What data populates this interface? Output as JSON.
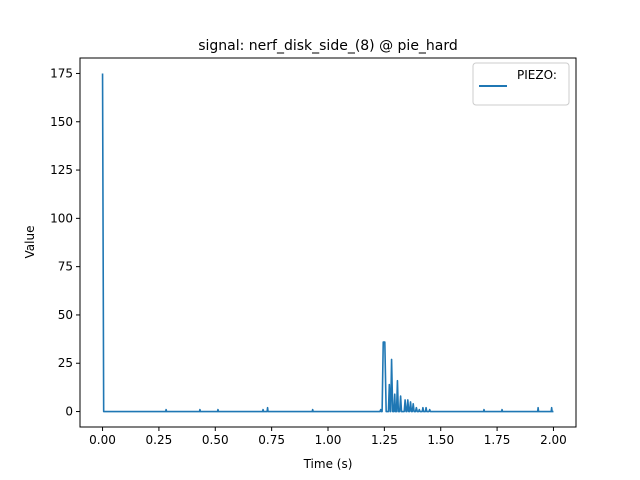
{
  "chart_data": {
    "type": "line",
    "title": "signal: nerf_disk_side_(8) @ pie_hard",
    "xlabel": "Time (s)",
    "ylabel": "Value",
    "xlim": [
      -0.1,
      2.1
    ],
    "ylim": [
      -8,
      183
    ],
    "xticks": [
      0.0,
      0.25,
      0.5,
      0.75,
      1.0,
      1.25,
      1.5,
      1.75,
      2.0
    ],
    "xtick_labels": [
      "0.00",
      "0.25",
      "0.50",
      "0.75",
      "1.00",
      "1.25",
      "1.50",
      "1.75",
      "2.00"
    ],
    "yticks": [
      0,
      25,
      50,
      75,
      100,
      125,
      150,
      175
    ],
    "ytick_labels": [
      "0",
      "25",
      "50",
      "75",
      "100",
      "125",
      "150",
      "175"
    ],
    "grid": false,
    "legend": {
      "position": "top-right",
      "entries": [
        "PIEZO:"
      ]
    },
    "series": [
      {
        "name": "PIEZO:",
        "color": "#1f77b4",
        "points": [
          [
            0.0,
            175
          ],
          [
            0.005,
            0
          ],
          [
            0.28,
            0
          ],
          [
            0.282,
            1
          ],
          [
            0.284,
            0
          ],
          [
            0.43,
            0
          ],
          [
            0.432,
            1
          ],
          [
            0.434,
            0
          ],
          [
            0.51,
            0
          ],
          [
            0.512,
            1
          ],
          [
            0.514,
            0
          ],
          [
            0.71,
            0
          ],
          [
            0.712,
            1
          ],
          [
            0.714,
            0
          ],
          [
            0.73,
            0
          ],
          [
            0.732,
            2
          ],
          [
            0.734,
            0
          ],
          [
            0.93,
            0
          ],
          [
            0.932,
            1
          ],
          [
            0.934,
            0
          ],
          [
            1.23,
            0
          ],
          [
            1.234,
            1
          ],
          [
            1.236,
            0
          ],
          [
            1.24,
            0
          ],
          [
            1.245,
            36
          ],
          [
            1.252,
            36
          ],
          [
            1.258,
            0
          ],
          [
            1.268,
            0
          ],
          [
            1.272,
            14
          ],
          [
            1.276,
            0
          ],
          [
            1.278,
            0
          ],
          [
            1.282,
            27
          ],
          [
            1.287,
            0
          ],
          [
            1.292,
            0
          ],
          [
            1.296,
            9
          ],
          [
            1.299,
            0
          ],
          [
            1.304,
            0
          ],
          [
            1.308,
            16
          ],
          [
            1.312,
            0
          ],
          [
            1.318,
            0
          ],
          [
            1.322,
            8
          ],
          [
            1.326,
            0
          ],
          [
            1.338,
            0
          ],
          [
            1.342,
            6
          ],
          [
            1.346,
            0
          ],
          [
            1.35,
            0
          ],
          [
            1.354,
            6
          ],
          [
            1.358,
            0
          ],
          [
            1.362,
            0
          ],
          [
            1.366,
            5
          ],
          [
            1.37,
            0
          ],
          [
            1.374,
            0
          ],
          [
            1.378,
            4
          ],
          [
            1.382,
            0
          ],
          [
            1.388,
            0
          ],
          [
            1.392,
            2
          ],
          [
            1.396,
            0
          ],
          [
            1.402,
            0
          ],
          [
            1.405,
            1
          ],
          [
            1.408,
            0
          ],
          [
            1.418,
            0
          ],
          [
            1.421,
            2
          ],
          [
            1.424,
            0
          ],
          [
            1.432,
            0
          ],
          [
            1.435,
            2
          ],
          [
            1.438,
            0
          ],
          [
            1.448,
            0
          ],
          [
            1.451,
            1
          ],
          [
            1.454,
            0
          ],
          [
            1.69,
            0
          ],
          [
            1.692,
            1
          ],
          [
            1.694,
            0
          ],
          [
            1.77,
            0
          ],
          [
            1.772,
            1
          ],
          [
            1.774,
            0
          ],
          [
            1.93,
            0
          ],
          [
            1.932,
            2
          ],
          [
            1.934,
            0
          ],
          [
            1.99,
            0
          ],
          [
            1.992,
            2
          ],
          [
            1.994,
            0
          ],
          [
            2.0,
            0
          ]
        ]
      }
    ]
  }
}
